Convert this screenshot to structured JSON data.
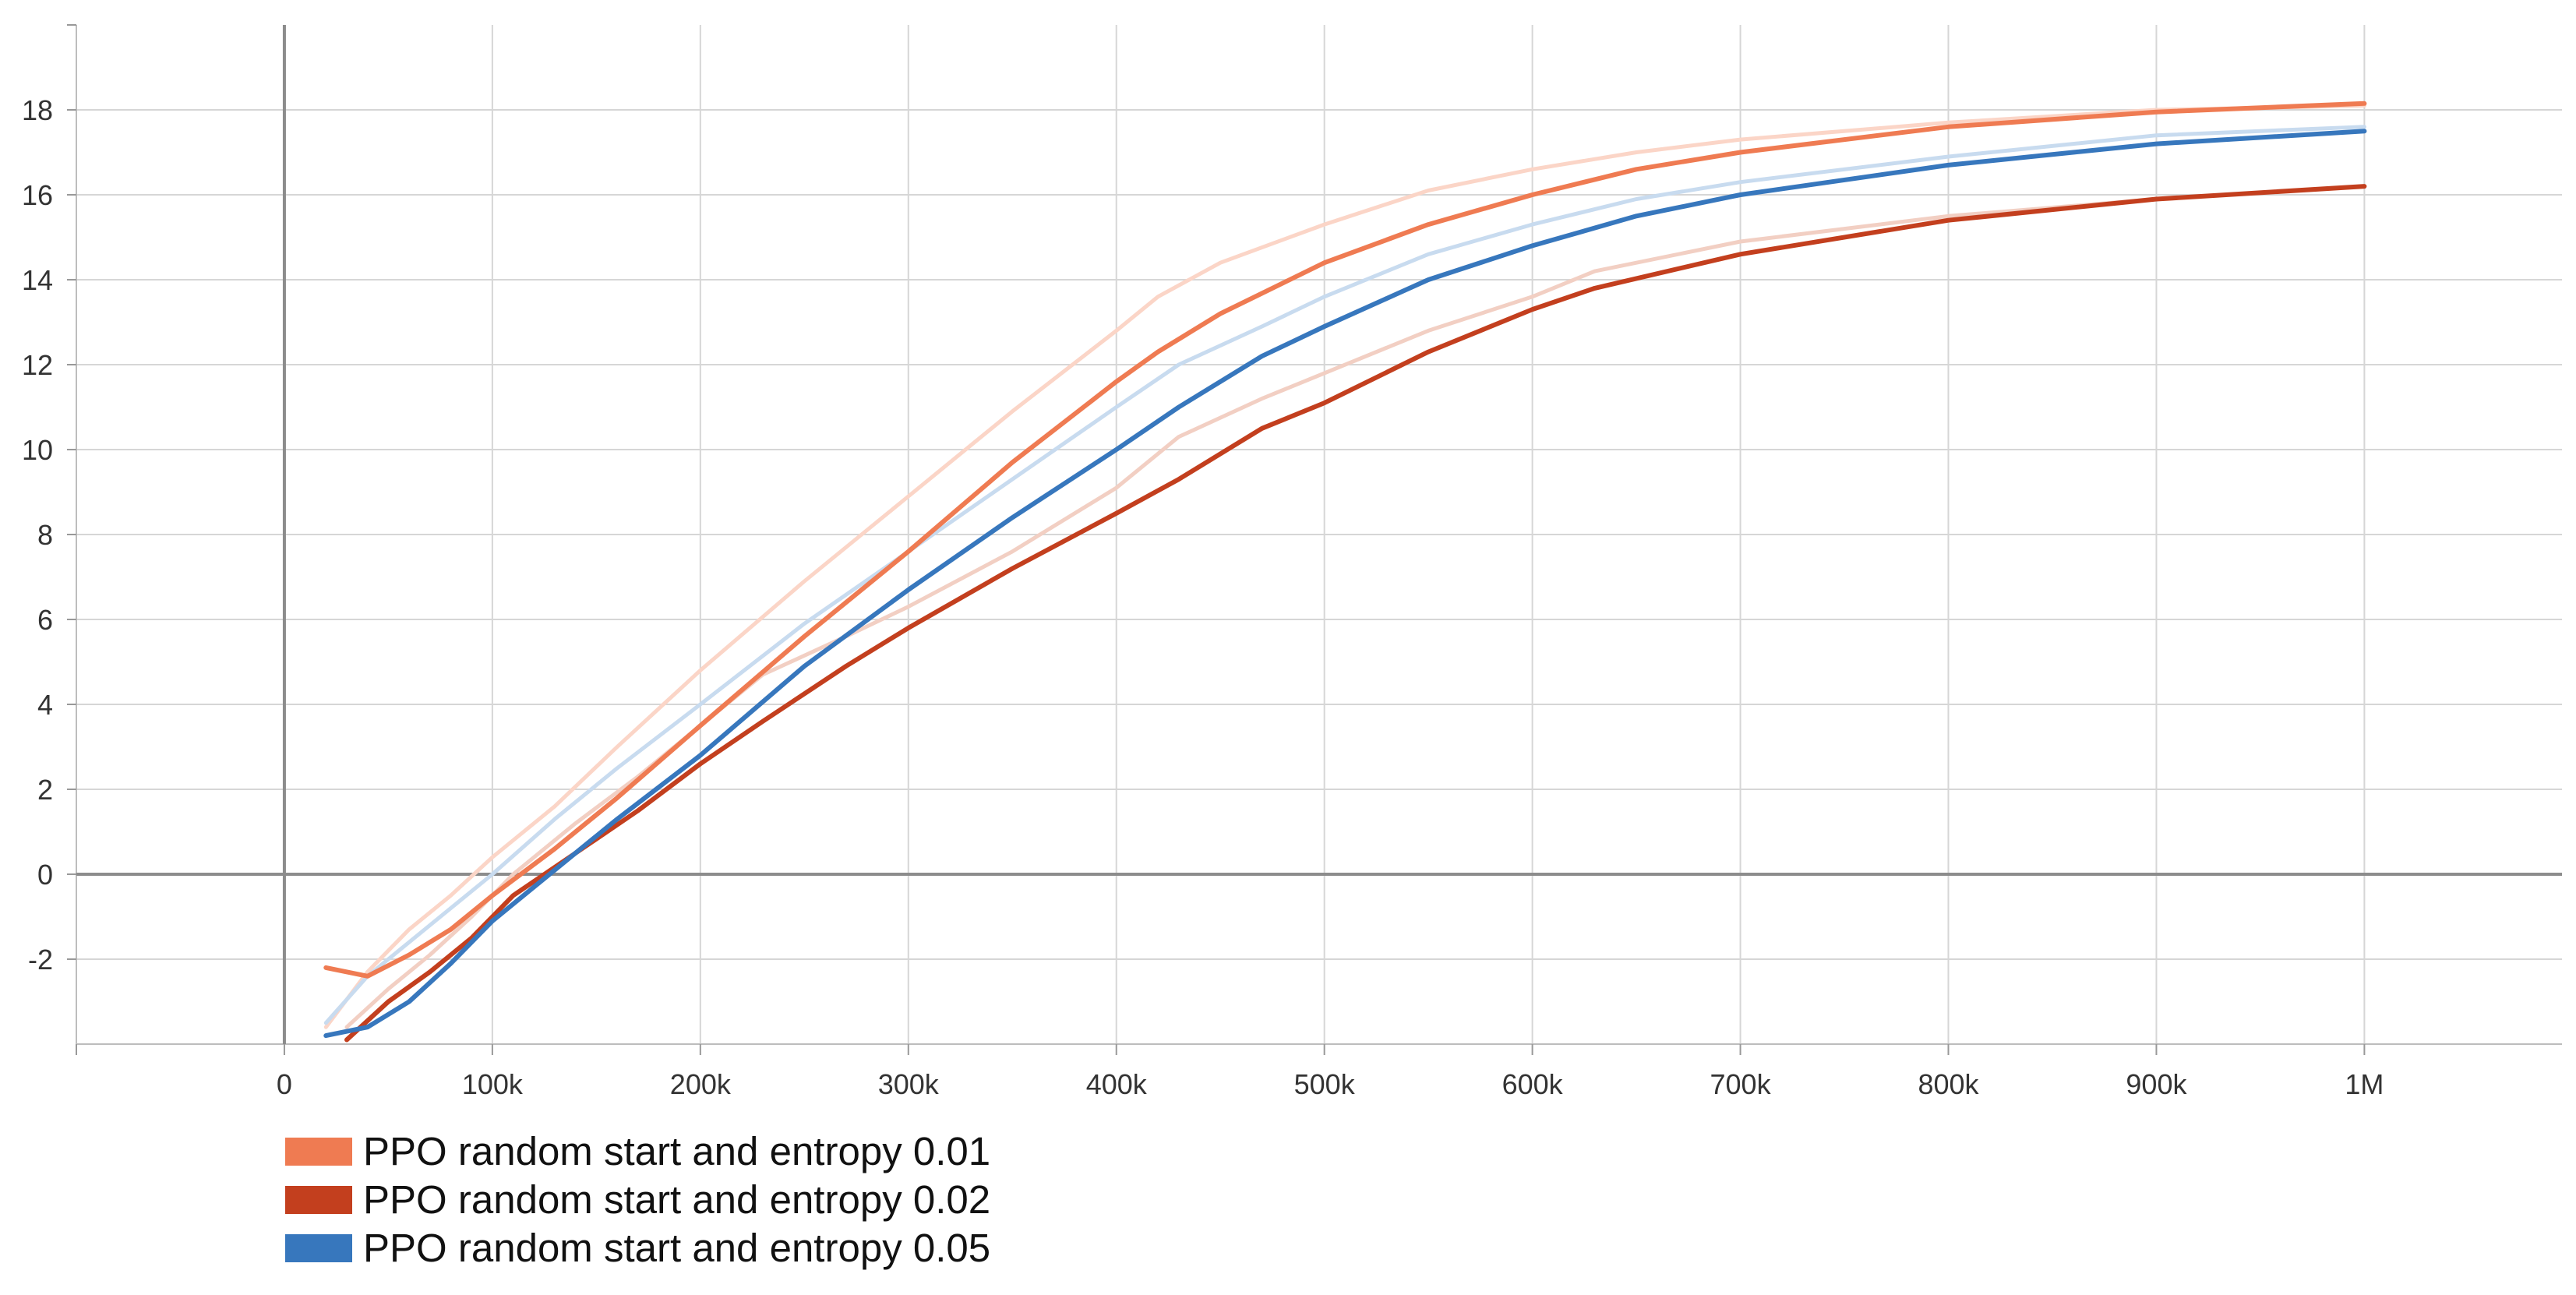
{
  "chart_data": {
    "type": "line",
    "title": "",
    "xlabel": "",
    "ylabel": "",
    "xlim": [
      -100000,
      1095000
    ],
    "ylim": [
      -4,
      20
    ],
    "x_ticks": [
      0,
      100000,
      200000,
      300000,
      400000,
      500000,
      600000,
      700000,
      800000,
      900000,
      1000000
    ],
    "x_tick_labels": [
      "0",
      "100k",
      "200k",
      "300k",
      "400k",
      "500k",
      "600k",
      "700k",
      "800k",
      "900k",
      "1M"
    ],
    "y_ticks": [
      -2,
      0,
      2,
      4,
      6,
      8,
      10,
      12,
      14,
      16,
      18
    ],
    "y_tick_labels": [
      "-2",
      "0",
      "2",
      "4",
      "6",
      "8",
      "10",
      "12",
      "14",
      "16",
      "18"
    ],
    "grid": true,
    "legend_position": "bottom-left",
    "series": [
      {
        "name": "PPO random start and entropy 0.01",
        "color": "#ef7b52",
        "raw_color": "#fbd5c7",
        "x": [
          20000,
          40000,
          60000,
          80000,
          100000,
          130000,
          160000,
          200000,
          250000,
          300000,
          350000,
          400000,
          420000,
          450000,
          500000,
          550000,
          600000,
          650000,
          700000,
          800000,
          900000,
          1000000
        ],
        "y": [
          -2.2,
          -2.4,
          -1.9,
          -1.3,
          -0.5,
          0.6,
          1.8,
          3.5,
          5.6,
          7.6,
          9.7,
          11.6,
          12.3,
          13.2,
          14.4,
          15.3,
          16.0,
          16.6,
          17.0,
          17.6,
          17.95,
          18.15
        ],
        "raw_y": [
          -3.6,
          -2.3,
          -1.3,
          -0.5,
          0.4,
          1.6,
          3.0,
          4.8,
          6.9,
          8.9,
          10.9,
          12.8,
          13.6,
          14.4,
          15.3,
          16.1,
          16.6,
          17.0,
          17.3,
          17.7,
          18.0,
          18.1
        ]
      },
      {
        "name": "PPO random start and entropy 0.02",
        "color": "#c33f1e",
        "raw_color": "#f2cfc3",
        "x": [
          30000,
          50000,
          70000,
          90000,
          110000,
          140000,
          170000,
          200000,
          230000,
          270000,
          300000,
          350000,
          400000,
          430000,
          470000,
          500000,
          550000,
          600000,
          630000,
          700000,
          800000,
          900000,
          1000000
        ],
        "y": [
          -3.9,
          -3.0,
          -2.3,
          -1.5,
          -0.5,
          0.5,
          1.5,
          2.6,
          3.6,
          4.9,
          5.8,
          7.2,
          8.5,
          9.3,
          10.5,
          11.1,
          12.3,
          13.3,
          13.8,
          14.6,
          15.4,
          15.9,
          16.2
        ],
        "raw_y": [
          -3.6,
          -2.7,
          -1.9,
          -1.0,
          0.0,
          1.2,
          2.3,
          3.5,
          4.7,
          5.6,
          6.3,
          7.6,
          9.1,
          10.3,
          11.2,
          11.8,
          12.8,
          13.6,
          14.2,
          14.9,
          15.5,
          15.9,
          16.2
        ]
      },
      {
        "name": "PPO random start and entropy 0.05",
        "color": "#3777bd",
        "raw_color": "#c8dbef",
        "x": [
          20000,
          40000,
          60000,
          80000,
          100000,
          130000,
          160000,
          200000,
          250000,
          300000,
          350000,
          400000,
          430000,
          470000,
          500000,
          550000,
          600000,
          650000,
          700000,
          800000,
          860000,
          900000,
          1000000
        ],
        "y": [
          -3.8,
          -3.6,
          -3.0,
          -2.1,
          -1.1,
          0.1,
          1.3,
          2.8,
          4.9,
          6.7,
          8.4,
          10.0,
          11.0,
          12.2,
          12.9,
          14.0,
          14.8,
          15.5,
          16.0,
          16.7,
          17.0,
          17.2,
          17.5
        ],
        "raw_y": [
          -3.5,
          -2.4,
          -1.6,
          -0.8,
          0.0,
          1.3,
          2.5,
          4.0,
          5.9,
          7.6,
          9.3,
          11.0,
          12.0,
          12.9,
          13.6,
          14.6,
          15.3,
          15.9,
          16.3,
          16.9,
          17.2,
          17.4,
          17.6
        ]
      }
    ]
  }
}
